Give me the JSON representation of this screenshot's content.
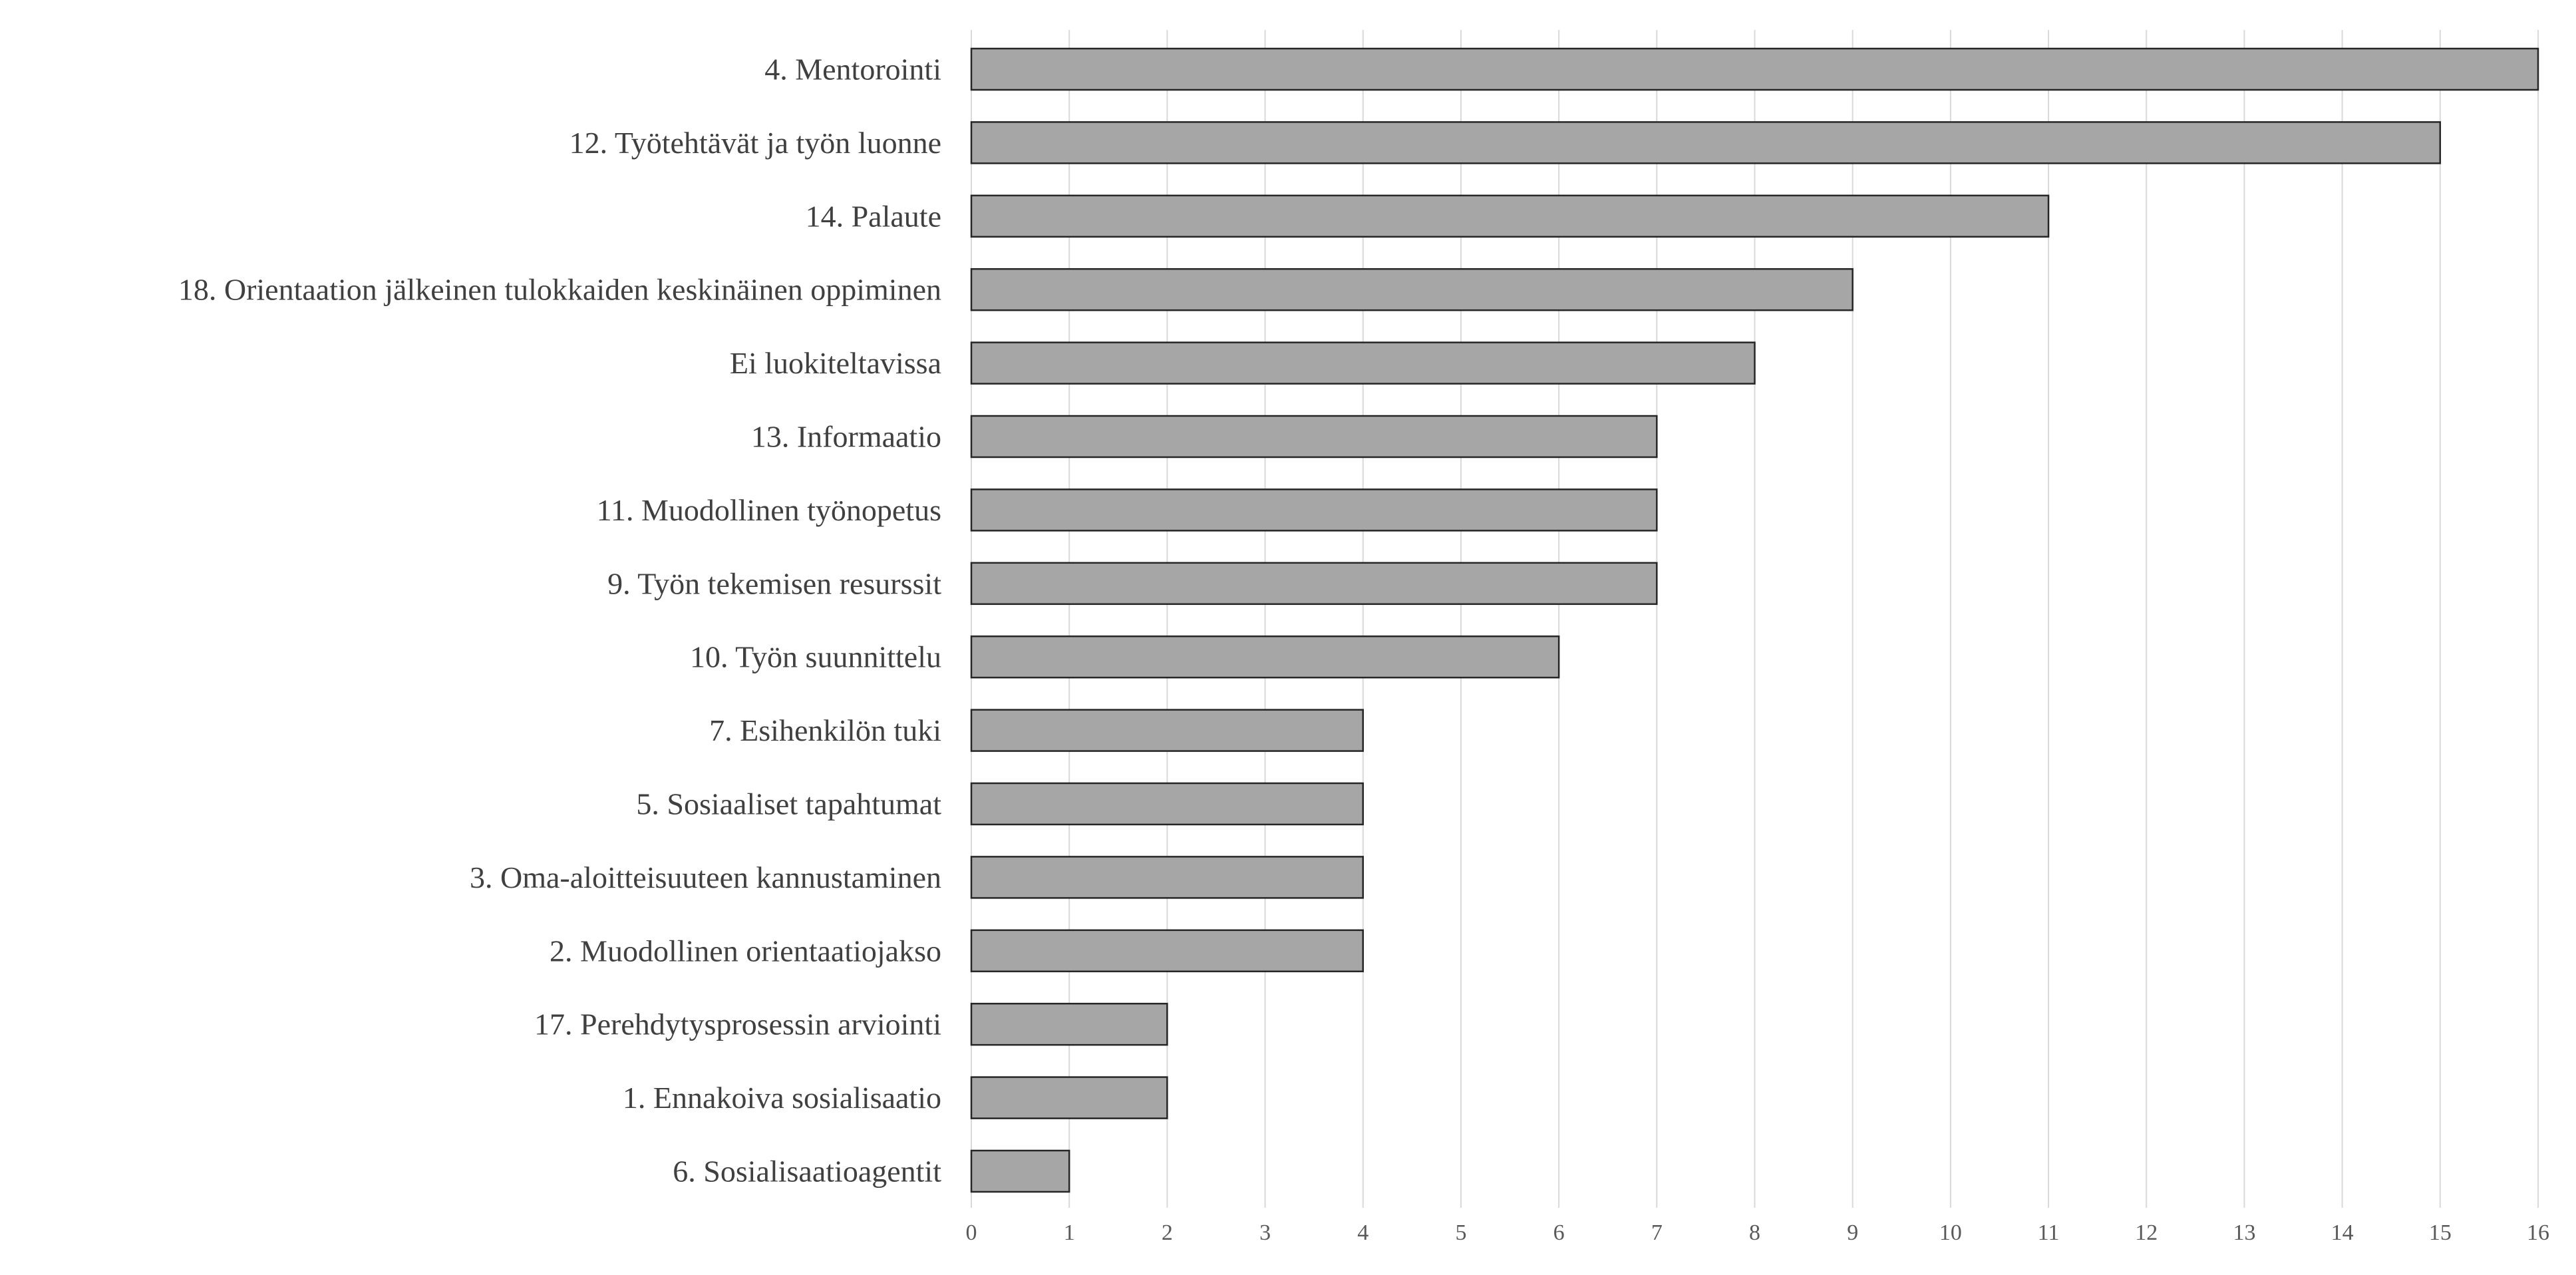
{
  "chart_data": {
    "type": "bar",
    "orientation": "horizontal",
    "categories": [
      "4. Mentorointi",
      "12. Työtehtävät ja työn luonne",
      "14. Palaute",
      "18. Orientaation jälkeinen tulokkaiden keskinäinen oppiminen",
      "Ei luokiteltavissa",
      "13. Informaatio",
      "11. Muodollinen työnopetus",
      "9. Työn tekemisen resurssit",
      "10. Työn suunnittelu",
      "7. Esihenkilön tuki",
      "5. Sosiaaliset tapahtumat",
      "3. Oma-aloitteisuuteen kannustaminen",
      "2. Muodollinen orientaatiojakso",
      "17. Perehdytysprosessin arviointi",
      "1. Ennakoiva sosialisaatio",
      "6. Sosialisaatioagentit"
    ],
    "values": [
      16,
      15,
      11,
      9,
      8,
      7,
      7,
      7,
      6,
      4,
      4,
      4,
      4,
      2,
      2,
      1
    ],
    "xlim": [
      0,
      16
    ],
    "xticks": [
      "0",
      "1",
      "2",
      "3",
      "4",
      "5",
      "6",
      "7",
      "8",
      "9",
      "10",
      "11",
      "12",
      "13",
      "14",
      "15",
      "16"
    ],
    "grid": "vertical",
    "legend": "none",
    "title": "",
    "xlabel": "",
    "ylabel": "",
    "colors": {
      "bar_fill": "#a6a6a6",
      "bar_stroke": "#262626",
      "grid": "#d9d9d9",
      "label": "#404040",
      "tick": "#595959"
    }
  }
}
